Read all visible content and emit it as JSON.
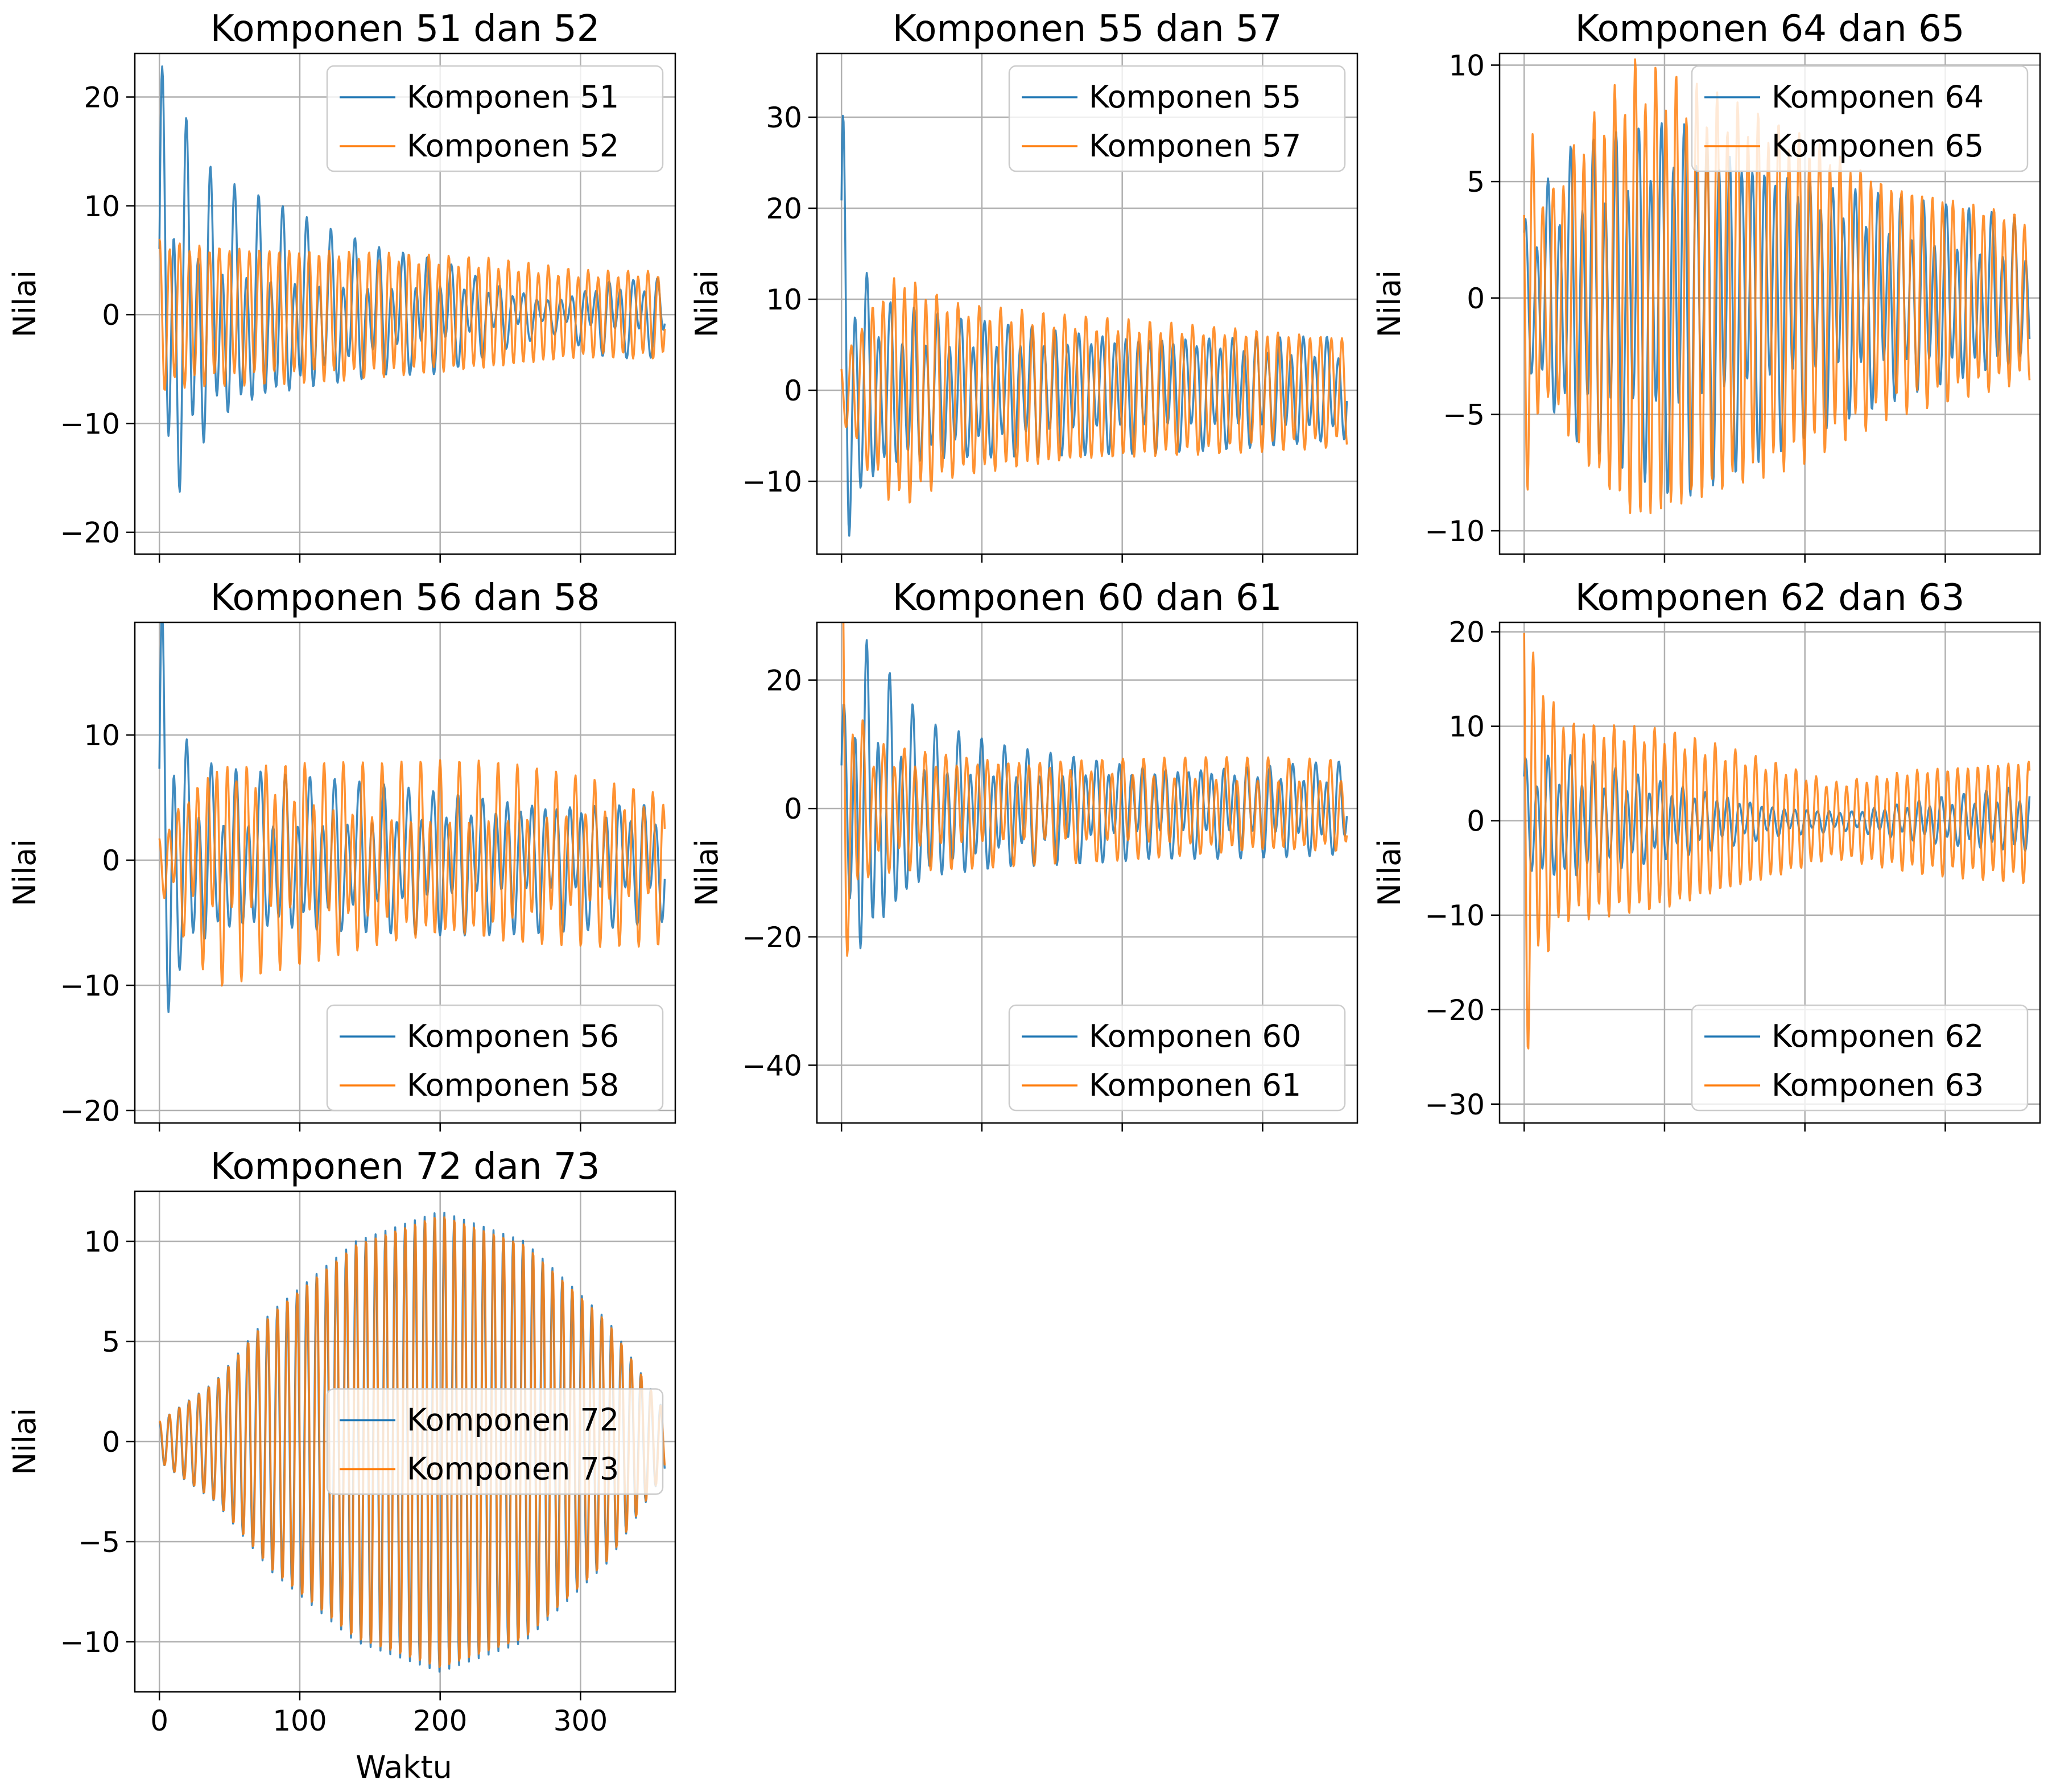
{
  "figure": {
    "ylabel": "Nilai",
    "xlabel": "Waktu",
    "colors": {
      "blue": "#1f77b4",
      "orange": "#ff7f0e",
      "grid": "#b0b0b0"
    }
  },
  "chart_data": [
    {
      "type": "line",
      "title": "Komponen 51 dan 52",
      "ylabel": "Nilai",
      "xlim": [
        -17.5,
        367.5
      ],
      "ylim": [
        -22,
        24
      ],
      "xticks": [
        0,
        100,
        200,
        300
      ],
      "show_xticklabels": false,
      "yticks": [
        -20,
        -10,
        0,
        10,
        20
      ],
      "ytick_labels": [
        "−20",
        "−10",
        "0",
        "10",
        "20"
      ],
      "legend_position": "upper right",
      "series": [
        {
          "name": "Komponen 51",
          "color": "#1f77b4",
          "x_range": [
            0,
            360
          ],
          "envelope": [
            [
              0,
              21
            ],
            [
              15,
              17
            ],
            [
              40,
              11
            ],
            [
              80,
              9
            ],
            [
              120,
              7
            ],
            [
              160,
              5.5
            ],
            [
              200,
              5
            ],
            [
              240,
              3
            ],
            [
              280,
              1.5
            ],
            [
              320,
              3.5
            ],
            [
              360,
              3.5
            ]
          ],
          "period": 8.6,
          "phase": 0.2,
          "harmonic": 0.55
        },
        {
          "name": "Komponen 52",
          "color": "#ff7f0e",
          "x_range": [
            0,
            360
          ],
          "envelope": [
            [
              0,
              7
            ],
            [
              20,
              6.5
            ],
            [
              60,
              6.3
            ],
            [
              120,
              6
            ],
            [
              180,
              5.5
            ],
            [
              240,
              5
            ],
            [
              300,
              4
            ],
            [
              360,
              4
            ]
          ],
          "period": 7.1,
          "phase": 1.4,
          "harmonic": 0.1
        }
      ]
    },
    {
      "type": "line",
      "title": "Komponen 55 dan 57",
      "ylabel": "Nilai",
      "xlim": [
        -17.5,
        367.5
      ],
      "ylim": [
        -18,
        37
      ],
      "xticks": [
        0,
        100,
        200,
        300
      ],
      "show_xticklabels": false,
      "yticks": [
        -10,
        0,
        10,
        20,
        30
      ],
      "ytick_labels": [
        "−10",
        "0",
        "10",
        "20",
        "30"
      ],
      "legend_position": "upper right",
      "series": [
        {
          "name": "Komponen 55",
          "color": "#1f77b4",
          "x_range": [
            0,
            360
          ],
          "envelope": [
            [
              0,
              30
            ],
            [
              8,
              14
            ],
            [
              30,
              9
            ],
            [
              80,
              7.5
            ],
            [
              180,
              6.5
            ],
            [
              280,
              6
            ],
            [
              360,
              5.5
            ]
          ],
          "period": 8.4,
          "phase": 0.6,
          "harmonic": 0.3
        },
        {
          "name": "Komponen 57",
          "color": "#ff7f0e",
          "x_range": [
            0,
            360
          ],
          "envelope": [
            [
              0,
              3
            ],
            [
              20,
              9
            ],
            [
              40,
              13
            ],
            [
              80,
              9.5
            ],
            [
              160,
              8
            ],
            [
              260,
              7
            ],
            [
              360,
              6
            ]
          ],
          "period": 7.6,
          "phase": 2.1,
          "harmonic": 0.1
        }
      ]
    },
    {
      "type": "line",
      "title": "Komponen 64 dan 65",
      "ylabel": "Nilai",
      "xlim": [
        -17.5,
        367.5
      ],
      "ylim": [
        -11,
        10.5
      ],
      "xticks": [
        0,
        100,
        200,
        300
      ],
      "show_xticklabels": false,
      "yticks": [
        -10,
        -5,
        0,
        5,
        10
      ],
      "ytick_labels": [
        "−10",
        "−5",
        "0",
        "5",
        "10"
      ],
      "legend_position": "upper right",
      "series": [
        {
          "name": "Komponen 64",
          "color": "#1f77b4",
          "x_range": [
            0,
            360
          ],
          "envelope": [
            [
              0,
              3
            ],
            [
              30,
              6
            ],
            [
              70,
              7
            ],
            [
              110,
              8
            ],
            [
              160,
              6.5
            ],
            [
              220,
              5
            ],
            [
              280,
              4
            ],
            [
              360,
              3
            ]
          ],
          "period": 8.1,
          "phase": 0.9,
          "harmonic": 0.35
        },
        {
          "name": "Komponen 65",
          "color": "#ff7f0e",
          "x_range": [
            0,
            360
          ],
          "envelope": [
            [
              0,
              9
            ],
            [
              15,
              4
            ],
            [
              40,
              7
            ],
            [
              80,
              10
            ],
            [
              140,
              8.5
            ],
            [
              200,
              7
            ],
            [
              260,
              5
            ],
            [
              360,
              3.5
            ]
          ],
          "period": 7.3,
          "phase": 2.6,
          "harmonic": 0.1
        }
      ]
    },
    {
      "type": "line",
      "title": "Komponen 56 dan 58",
      "ylabel": "Nilai",
      "xlim": [
        -17.5,
        367.5
      ],
      "ylim": [
        -21,
        19
      ],
      "xticks": [
        0,
        100,
        200,
        300
      ],
      "show_xticklabels": false,
      "yticks": [
        -20,
        -10,
        0,
        10
      ],
      "ytick_labels": [
        "−20",
        "−10",
        "0",
        "10"
      ],
      "legend_position": "lower right",
      "series": [
        {
          "name": "Komponen 56",
          "color": "#1f77b4",
          "x_range": [
            0,
            360
          ],
          "envelope": [
            [
              0,
              18
            ],
            [
              8,
              18
            ],
            [
              15,
              9
            ],
            [
              40,
              6.5
            ],
            [
              100,
              6
            ],
            [
              200,
              5.5
            ],
            [
              300,
              5
            ],
            [
              360,
              4.5
            ]
          ],
          "period": 8.8,
          "phase": 0.3,
          "harmonic": 0.45
        },
        {
          "name": "Komponen 58",
          "color": "#ff7f0e",
          "x_range": [
            0,
            360
          ],
          "envelope": [
            [
              0,
              2
            ],
            [
              20,
              6
            ],
            [
              40,
              9
            ],
            [
              80,
              8
            ],
            [
              160,
              7
            ],
            [
              240,
              7
            ],
            [
              360,
              6
            ]
          ],
          "period": 6.9,
          "phase": 1.7,
          "harmonic": 0.45
        }
      ]
    },
    {
      "type": "line",
      "title": "Komponen 60 dan 61",
      "ylabel": "Nilai",
      "xlim": [
        -17.5,
        367.5
      ],
      "ylim": [
        -49,
        29
      ],
      "xticks": [
        0,
        100,
        200,
        300
      ],
      "show_xticklabels": false,
      "yticks": [
        -40,
        -20,
        0,
        20
      ],
      "ytick_labels": [
        "−40",
        "−20",
        "0",
        "20"
      ],
      "legend_position": "lower right",
      "series": [
        {
          "name": "Komponen 60",
          "color": "#1f77b4",
          "x_range": [
            0,
            360
          ],
          "envelope": [
            [
              0,
              13
            ],
            [
              12,
              25
            ],
            [
              30,
              20
            ],
            [
              60,
              12
            ],
            [
              120,
              9
            ],
            [
              220,
              7
            ],
            [
              360,
              7
            ]
          ],
          "period": 8.2,
          "phase": 0.4,
          "harmonic": 0.4
        },
        {
          "name": "Komponen 61",
          "color": "#ff7f0e",
          "x_range": [
            0,
            360
          ],
          "envelope": [
            [
              0,
              42
            ],
            [
              5,
              20
            ],
            [
              20,
              10
            ],
            [
              60,
              9
            ],
            [
              140,
              8
            ],
            [
              240,
              7.5
            ],
            [
              360,
              7
            ]
          ],
          "period": 7.4,
          "phase": 1.1,
          "harmonic": 0.3
        }
      ]
    },
    {
      "type": "line",
      "title": "Komponen 62 dan 63",
      "ylabel": "Nilai",
      "xlim": [
        -17.5,
        367.5
      ],
      "ylim": [
        -32,
        21
      ],
      "xticks": [
        0,
        100,
        200,
        300
      ],
      "show_xticklabels": false,
      "yticks": [
        -30,
        -20,
        -10,
        0,
        10,
        20
      ],
      "ytick_labels": [
        "−30",
        "−20",
        "−10",
        "0",
        "10",
        "20"
      ],
      "legend_position": "lower right",
      "series": [
        {
          "name": "Komponen 62",
          "color": "#1f77b4",
          "x_range": [
            0,
            360
          ],
          "envelope": [
            [
              0,
              6
            ],
            [
              30,
              6.5
            ],
            [
              100,
              4
            ],
            [
              180,
              1.5
            ],
            [
              230,
              1
            ],
            [
              300,
              2.5
            ],
            [
              360,
              3.5
            ]
          ],
          "period": 8.0,
          "phase": 0.7,
          "harmonic": 0.3
        },
        {
          "name": "Komponen 63",
          "color": "#ff7f0e",
          "x_range": [
            0,
            360
          ],
          "envelope": [
            [
              0,
              28
            ],
            [
              8,
              16
            ],
            [
              30,
              10.5
            ],
            [
              100,
              9.5
            ],
            [
              180,
              6
            ],
            [
              220,
              4
            ],
            [
              280,
              5.5
            ],
            [
              360,
              6.5
            ]
          ],
          "period": 7.2,
          "phase": 2.2,
          "harmonic": 0.1
        }
      ]
    },
    {
      "type": "line",
      "title": "Komponen 72 dan 73",
      "ylabel": "Nilai",
      "xlabel": "Waktu",
      "xlim": [
        -17.5,
        367.5
      ],
      "ylim": [
        -12.5,
        12.5
      ],
      "xticks": [
        0,
        100,
        200,
        300
      ],
      "xtick_labels": [
        "0",
        "100",
        "200",
        "300"
      ],
      "show_xticklabels": true,
      "yticks": [
        -10,
        -5,
        0,
        5,
        10
      ],
      "ytick_labels": [
        "−10",
        "−5",
        "0",
        "5",
        "10"
      ],
      "legend_position": "center right",
      "series": [
        {
          "name": "Komponen 72",
          "color": "#1f77b4",
          "x_range": [
            0,
            360
          ],
          "envelope": [
            [
              0,
              1
            ],
            [
              40,
              3
            ],
            [
              80,
              6.5
            ],
            [
              140,
              10
            ],
            [
              200,
              11.5
            ],
            [
              260,
              10
            ],
            [
              320,
              6
            ],
            [
              360,
              1.5
            ]
          ],
          "period": 7.0,
          "phase": 1.57,
          "harmonic": 0.0
        },
        {
          "name": "Komponen 73",
          "color": "#ff7f0e",
          "x_range": [
            0,
            360
          ],
          "envelope": [
            [
              0,
              1
            ],
            [
              40,
              3
            ],
            [
              80,
              6.5
            ],
            [
              140,
              10
            ],
            [
              200,
              11.5
            ],
            [
              260,
              10
            ],
            [
              320,
              6
            ],
            [
              360,
              1.5
            ]
          ],
          "period": 7.0,
          "phase": 1.37,
          "harmonic": 0.0
        }
      ]
    }
  ]
}
